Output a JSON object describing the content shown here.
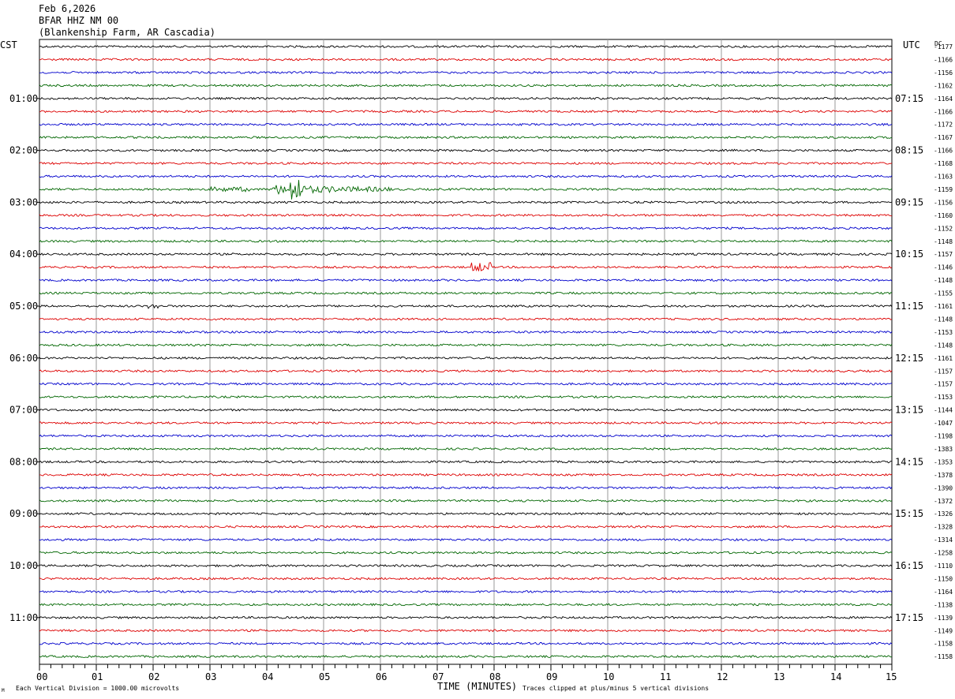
{
  "header": {
    "date": "Feb 6,2026",
    "channel": "BFAR HHZ NM 00",
    "location": "(Blankenship Farm, AR Cascadia)"
  },
  "left_tz": "CST",
  "right_tz": "UTC",
  "dc_label": "DC",
  "footer": {
    "scale_note": "Each Vertical Division = 1000.00 microvolts",
    "clip_note": "Traces clipped at plus/minus 5 vertical divisions",
    "corner_mark": "M"
  },
  "colors": {
    "trace_cycle": [
      "#000000",
      "#dd0000",
      "#0000cc",
      "#006600"
    ],
    "grid": "#999999",
    "border": "#000000"
  },
  "chart_data": {
    "type": "line",
    "title": "",
    "xlabel": "TIME (MINUTES)",
    "ylabel": "",
    "xlim": [
      0,
      15
    ],
    "x_ticks": [
      "00",
      "01",
      "02",
      "03",
      "04",
      "05",
      "06",
      "07",
      "08",
      "09",
      "10",
      "11",
      "12",
      "13",
      "14",
      "15"
    ],
    "left_hour_labels": [
      {
        "row": 4,
        "label": "01:00"
      },
      {
        "row": 8,
        "label": "02:00"
      },
      {
        "row": 12,
        "label": "03:00"
      },
      {
        "row": 16,
        "label": "04:00"
      },
      {
        "row": 20,
        "label": "05:00"
      },
      {
        "row": 24,
        "label": "06:00"
      },
      {
        "row": 28,
        "label": "07:00"
      },
      {
        "row": 32,
        "label": "08:00"
      },
      {
        "row": 36,
        "label": "09:00"
      },
      {
        "row": 40,
        "label": "10:00"
      },
      {
        "row": 44,
        "label": "11:00"
      }
    ],
    "right_hour_labels": [
      {
        "row": 4,
        "label": "07:15"
      },
      {
        "row": 8,
        "label": "08:15"
      },
      {
        "row": 12,
        "label": "09:15"
      },
      {
        "row": 16,
        "label": "10:15"
      },
      {
        "row": 20,
        "label": "11:15"
      },
      {
        "row": 24,
        "label": "12:15"
      },
      {
        "row": 28,
        "label": "13:15"
      },
      {
        "row": 32,
        "label": "14:15"
      },
      {
        "row": 36,
        "label": "15:15"
      },
      {
        "row": 40,
        "label": "16:15"
      },
      {
        "row": 44,
        "label": "17:15"
      }
    ],
    "dc_offsets": [
      -1177,
      -1166,
      -1156,
      -1162,
      -1164,
      -1166,
      -1172,
      -1167,
      -1166,
      -1168,
      -1163,
      -1159,
      -1156,
      -1160,
      -1152,
      -1148,
      -1157,
      -1146,
      -1148,
      -1155,
      -1161,
      -1148,
      -1153,
      -1148,
      -1161,
      -1157,
      -1157,
      -1153,
      -1144,
      -1047,
      -1198,
      -1383,
      -1353,
      -1378,
      -1390,
      -1372,
      -1326,
      -1328,
      -1314,
      -1258,
      -1110,
      -1150,
      -1164,
      -1138,
      -1139,
      -1149,
      -1158,
      -1158
    ],
    "events": [
      {
        "row": 11,
        "start_min": 3.0,
        "end_min": 3.7,
        "amplitude": "small"
      },
      {
        "row": 11,
        "start_min": 4.1,
        "end_min": 6.2,
        "amplitude": "large",
        "peak_min": 4.5
      },
      {
        "row": 17,
        "start_min": 7.6,
        "end_min": 7.95,
        "amplitude": "medium"
      },
      {
        "row": 20,
        "start_min": 1.9,
        "end_min": 2.1,
        "amplitude": "small"
      }
    ]
  }
}
